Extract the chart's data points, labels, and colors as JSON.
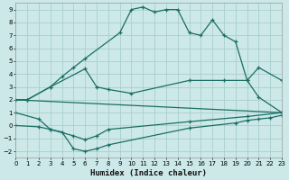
{
  "xlabel": "Humidex (Indice chaleur)",
  "xlim": [
    0,
    23
  ],
  "ylim": [
    -2.5,
    9.5
  ],
  "xticks": [
    0,
    1,
    2,
    3,
    4,
    5,
    6,
    7,
    8,
    9,
    10,
    11,
    12,
    13,
    14,
    15,
    16,
    17,
    18,
    19,
    20,
    21,
    22,
    23
  ],
  "yticks": [
    -2,
    -1,
    0,
    1,
    2,
    3,
    4,
    5,
    6,
    7,
    8,
    9
  ],
  "bg_color": "#cce8e8",
  "line_color": "#1a6e64",
  "grid_color": "#aacece",
  "line1_x": [
    0,
    1,
    3,
    4,
    5,
    6,
    9,
    10,
    11,
    12,
    13,
    14,
    15,
    16,
    17,
    18,
    19,
    20,
    21,
    23
  ],
  "line1_y": [
    2.0,
    2.0,
    3.0,
    3.8,
    4.5,
    5.2,
    7.2,
    9.0,
    9.2,
    8.8,
    9.0,
    9.0,
    7.2,
    7.0,
    8.2,
    7.0,
    6.5,
    3.5,
    4.5,
    3.5
  ],
  "line2_x": [
    0,
    1,
    3,
    6,
    7,
    8,
    10,
    15,
    18,
    20,
    21,
    23
  ],
  "line2_y": [
    2.0,
    2.0,
    3.0,
    4.4,
    3.0,
    2.8,
    2.5,
    3.5,
    3.5,
    3.5,
    2.2,
    1.0
  ],
  "line3_x": [
    0,
    23
  ],
  "line3_y": [
    2.0,
    1.0
  ],
  "line4_x": [
    0,
    2,
    3,
    4,
    5,
    6,
    7,
    8,
    15,
    19,
    20,
    21,
    22,
    23
  ],
  "line4_y": [
    1.0,
    0.5,
    -0.3,
    -0.5,
    -1.8,
    -2.0,
    -1.8,
    -1.5,
    -0.2,
    0.2,
    0.4,
    0.5,
    0.6,
    0.8
  ],
  "line5_x": [
    0,
    2,
    3,
    5,
    6,
    7,
    8,
    15,
    20,
    23
  ],
  "line5_y": [
    0.0,
    -0.1,
    -0.3,
    -0.8,
    -1.1,
    -0.8,
    -0.3,
    0.3,
    0.7,
    1.0
  ]
}
